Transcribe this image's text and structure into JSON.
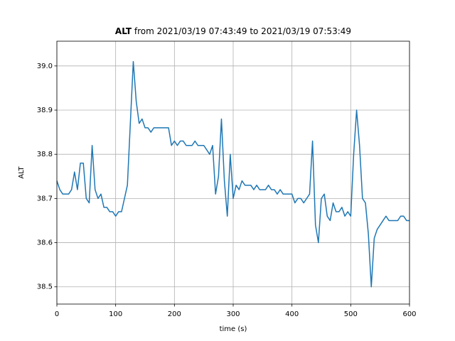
{
  "chart_data": {
    "type": "line",
    "title": [
      "ALT",
      "from 2021/03/19 07:43:49 to 2021/03/19 07:53:49"
    ],
    "xlabel": "time (s)",
    "ylabel": "ALT",
    "x": [
      0,
      5,
      10,
      15,
      20,
      25,
      30,
      35,
      40,
      45,
      50,
      55,
      60,
      65,
      70,
      75,
      80,
      85,
      90,
      95,
      100,
      105,
      110,
      115,
      120,
      125,
      130,
      135,
      140,
      145,
      150,
      155,
      160,
      165,
      170,
      175,
      180,
      185,
      190,
      195,
      200,
      205,
      210,
      215,
      220,
      225,
      230,
      235,
      240,
      245,
      250,
      255,
      260,
      265,
      270,
      275,
      280,
      285,
      290,
      295,
      300,
      305,
      310,
      315,
      320,
      325,
      330,
      335,
      340,
      345,
      350,
      355,
      360,
      365,
      370,
      375,
      380,
      385,
      390,
      395,
      400,
      405,
      410,
      415,
      420,
      425,
      430,
      435,
      440,
      445,
      450,
      455,
      460,
      465,
      470,
      475,
      480,
      485,
      490,
      495,
      500,
      505,
      510,
      515,
      520,
      525,
      530,
      535,
      540,
      545,
      550,
      555,
      560,
      565,
      570,
      575,
      580,
      585,
      590,
      595,
      600
    ],
    "series": [
      {
        "name": "ALT",
        "color": "#1f77b4",
        "values": [
          38.74,
          38.72,
          38.71,
          38.71,
          38.71,
          38.72,
          38.76,
          38.72,
          38.78,
          38.78,
          38.7,
          38.69,
          38.82,
          38.72,
          38.7,
          38.71,
          38.68,
          38.68,
          38.67,
          38.67,
          38.66,
          38.67,
          38.67,
          38.7,
          38.73,
          38.87,
          39.01,
          38.92,
          38.87,
          38.88,
          38.86,
          38.86,
          38.85,
          38.86,
          38.86,
          38.86,
          38.86,
          38.86,
          38.86,
          38.82,
          38.83,
          38.82,
          38.83,
          38.83,
          38.82,
          38.82,
          38.82,
          38.83,
          38.82,
          38.82,
          38.82,
          38.81,
          38.8,
          38.82,
          38.71,
          38.75,
          38.88,
          38.74,
          38.66,
          38.8,
          38.7,
          38.73,
          38.72,
          38.74,
          38.73,
          38.73,
          38.73,
          38.72,
          38.73,
          38.72,
          38.72,
          38.72,
          38.73,
          38.72,
          38.72,
          38.71,
          38.72,
          38.71,
          38.71,
          38.71,
          38.71,
          38.69,
          38.7,
          38.7,
          38.69,
          38.7,
          38.71,
          38.83,
          38.64,
          38.6,
          38.7,
          38.71,
          38.66,
          38.65,
          38.69,
          38.67,
          38.67,
          38.68,
          38.66,
          38.67,
          38.66,
          38.8,
          38.9,
          38.82,
          38.7,
          38.69,
          38.62,
          38.5,
          38.61,
          38.63,
          38.64,
          38.65,
          38.66,
          38.65,
          38.65,
          38.65,
          38.65,
          38.66,
          38.66,
          38.65,
          38.65
        ]
      }
    ],
    "xlim": [
      0,
      600
    ],
    "xticks": [
      0,
      100,
      200,
      300,
      400,
      500,
      600
    ],
    "ylim": [
      38.461,
      39.056
    ],
    "yticks": [
      38.5,
      38.6,
      38.7,
      38.8,
      38.9,
      {
        "value": 39,
        "label": "39.0"
      }
    ],
    "grid": true
  }
}
